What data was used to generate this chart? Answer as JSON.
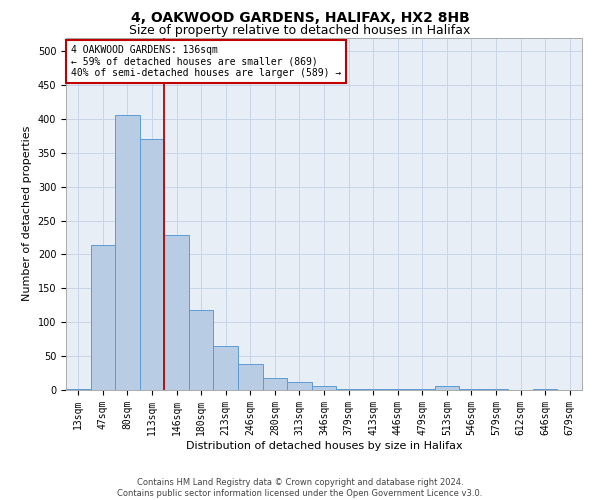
{
  "title": "4, OAKWOOD GARDENS, HALIFAX, HX2 8HB",
  "subtitle": "Size of property relative to detached houses in Halifax",
  "xlabel": "Distribution of detached houses by size in Halifax",
  "ylabel": "Number of detached properties",
  "footer_line1": "Contains HM Land Registry data © Crown copyright and database right 2024.",
  "footer_line2": "Contains public sector information licensed under the Open Government Licence v3.0.",
  "categories": [
    "13sqm",
    "47sqm",
    "80sqm",
    "113sqm",
    "146sqm",
    "180sqm",
    "213sqm",
    "246sqm",
    "280sqm",
    "313sqm",
    "346sqm",
    "379sqm",
    "413sqm",
    "446sqm",
    "479sqm",
    "513sqm",
    "546sqm",
    "579sqm",
    "612sqm",
    "646sqm",
    "679sqm"
  ],
  "values": [
    2,
    214,
    405,
    370,
    228,
    118,
    65,
    38,
    17,
    12,
    6,
    2,
    2,
    2,
    1,
    6,
    1,
    1,
    0,
    1,
    0
  ],
  "bar_color": "#b8cce4",
  "bar_edge_color": "#5b9bd5",
  "vline_x_index": 3,
  "vline_color": "#c00000",
  "annotation_text": "4 OAKWOOD GARDENS: 136sqm\n← 59% of detached houses are smaller (869)\n40% of semi-detached houses are larger (589) →",
  "annotation_box_color": "#ffffff",
  "annotation_box_edge": "#c00000",
  "ylim": [
    0,
    520
  ],
  "yticks": [
    0,
    50,
    100,
    150,
    200,
    250,
    300,
    350,
    400,
    450,
    500
  ],
  "ax_facecolor": "#e8eef5",
  "background_color": "#ffffff",
  "grid_color": "#c8d4e8",
  "title_fontsize": 10,
  "subtitle_fontsize": 9,
  "axis_label_fontsize": 8,
  "tick_fontsize": 7,
  "annotation_fontsize": 7,
  "footer_fontsize": 6
}
